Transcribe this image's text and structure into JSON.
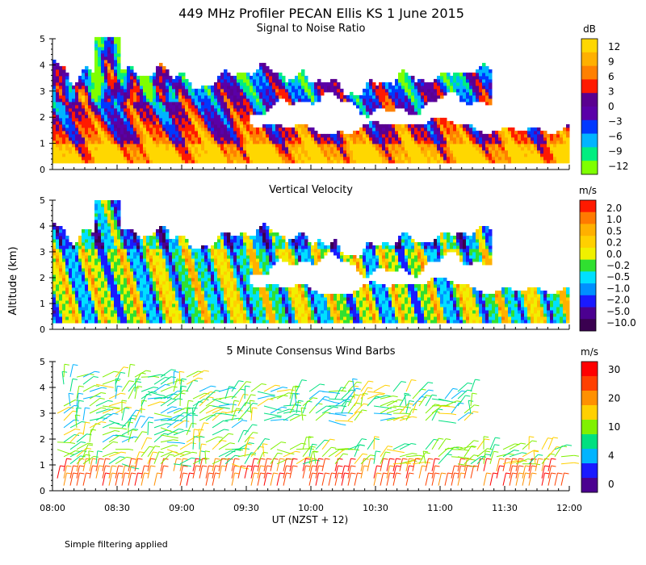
{
  "figure": {
    "title": "449 MHz Profiler PECAN Ellis KS   1 June 2015",
    "ylabel": "Altitude (km)",
    "xlabel": "UT  (NZST + 12)",
    "footnote": "Simple filtering applied"
  },
  "chart_data": [
    {
      "type": "heatmap",
      "title": "Signal to Noise Ratio",
      "x_ticks": [
        "08:00",
        "08:30",
        "09:00",
        "09:30",
        "10:00",
        "10:30",
        "11:00",
        "11:30",
        "12:00"
      ],
      "x_range": [
        "08:00",
        "12:00"
      ],
      "y_ticks": [
        0,
        1,
        2,
        3,
        4,
        5
      ],
      "ylim": [
        0,
        5
      ],
      "colorbar": {
        "unit": "dB",
        "labels": [
          "12",
          "9",
          "6",
          "3",
          "0",
          "−3",
          "−6",
          "−9",
          "−12"
        ]
      },
      "colors": [
        "#7fff00",
        "#00ee80",
        "#00b4ff",
        "#0038ff",
        "#5a00a8",
        "#5a0090",
        "#ff1a00",
        "#ff8000",
        "#ffb000",
        "#ffd700"
      ]
    },
    {
      "type": "heatmap",
      "title": "Vertical Velocity",
      "x_ticks": [
        "08:00",
        "08:30",
        "09:00",
        "09:30",
        "10:00",
        "10:30",
        "11:00",
        "11:30",
        "12:00"
      ],
      "x_range": [
        "08:00",
        "12:00"
      ],
      "y_ticks": [
        0,
        1,
        2,
        3,
        4,
        5
      ],
      "ylim": [
        0,
        5
      ],
      "colorbar": {
        "unit": "m/s",
        "labels": [
          "2.0",
          "1.0",
          "0.5",
          "0.2",
          "0.0",
          "−0.2",
          "−0.5",
          "−1.0",
          "−2.0",
          "−5.0",
          "−10.0"
        ]
      },
      "colors": [
        "#3a0050",
        "#4b0090",
        "#1a1aff",
        "#0090ff",
        "#00e0ff",
        "#30e030",
        "#f0f000",
        "#ffd000",
        "#ffb000",
        "#ff7a00",
        "#ff1a00"
      ]
    },
    {
      "type": "scatter",
      "title": "5 Minute Consensus Wind Barbs",
      "x_ticks": [
        "08:00",
        "08:30",
        "09:00",
        "09:30",
        "10:00",
        "10:30",
        "11:00",
        "11:30",
        "12:00"
      ],
      "x_range": [
        "08:00",
        "12:00"
      ],
      "y_ticks": [
        0,
        1,
        2,
        3,
        4,
        5
      ],
      "ylim": [
        0,
        5
      ],
      "colorbar": {
        "unit": "m/s",
        "labels": [
          "30",
          "20",
          "10",
          "4",
          "0"
        ]
      },
      "colors": [
        "#4b0090",
        "#1a1aff",
        "#00b4ff",
        "#00e080",
        "#80f000",
        "#ffd000",
        "#ff9000",
        "#ff4000",
        "#ff0000"
      ]
    }
  ]
}
